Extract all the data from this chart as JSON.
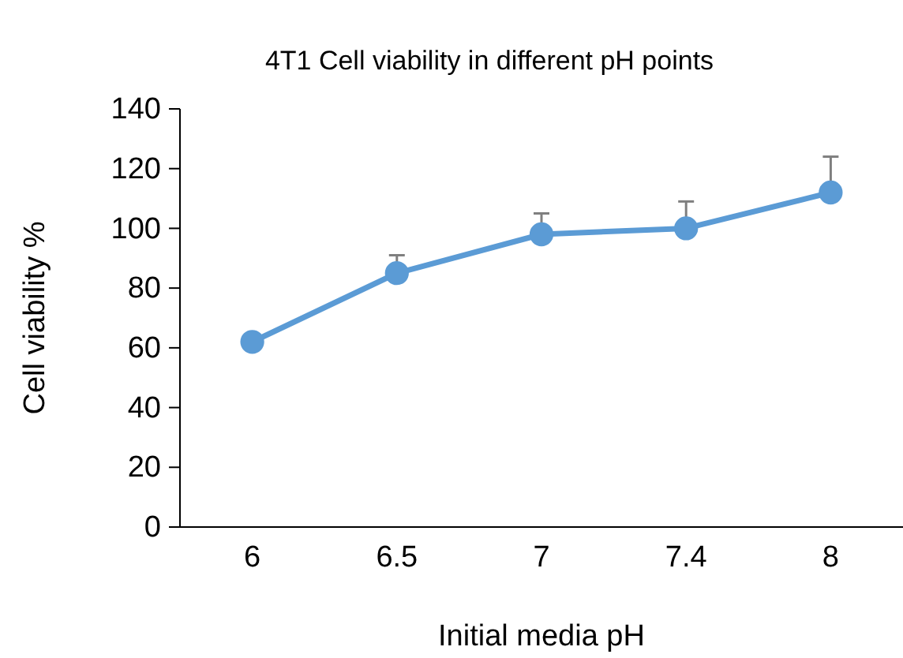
{
  "chart_data": {
    "type": "line",
    "title": "4T1 Cell viability in different pH points",
    "xlabel": "Initial media pH",
    "ylabel": "Cell viability %",
    "categories": [
      "6",
      "6.5",
      "7",
      "7.4",
      "8"
    ],
    "series": [
      {
        "color": "#5b9bd5",
        "values": [
          62,
          85,
          98,
          100,
          112
        ],
        "errors": [
          null,
          [
            85,
            91
          ],
          [
            98,
            105
          ],
          [
            100,
            109
          ],
          [
            112,
            124
          ]
        ]
      }
    ],
    "ylim": [
      0,
      140
    ],
    "yticks": [
      0,
      20,
      40,
      60,
      80,
      100,
      120,
      140
    ],
    "grid": false,
    "marker": "circle",
    "line_style": "solid"
  }
}
